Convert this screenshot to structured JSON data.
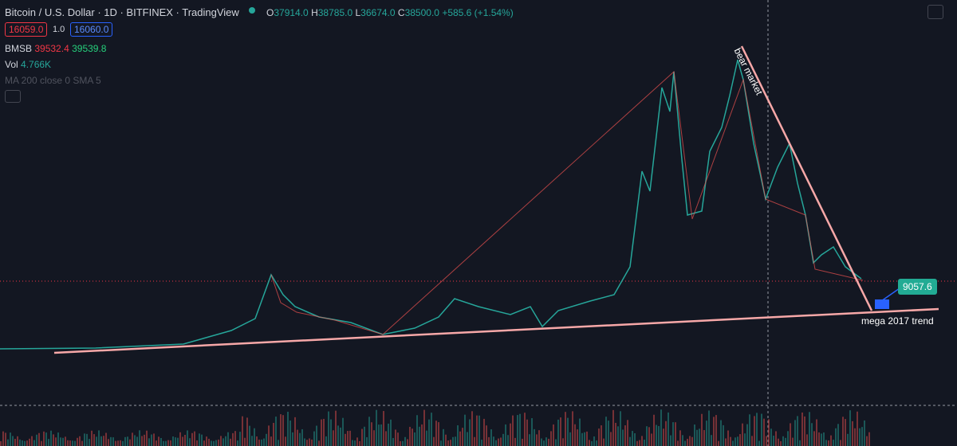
{
  "header": {
    "title": "Bitcoin / U.S. Dollar · 1D · BITFINEX · TradingView",
    "ohlc": [
      {
        "label": "O",
        "value": "37914.0"
      },
      {
        "label": "H",
        "value": "38785.0"
      },
      {
        "label": "L",
        "value": "36674.0"
      },
      {
        "label": "C",
        "value": "38500.0"
      }
    ],
    "change": "+585.6 (+1.54%)"
  },
  "order": {
    "sell": "16059.0",
    "qty": "1.0",
    "buy": "16060.0"
  },
  "indicators": {
    "bmsb": {
      "name": "BMSB",
      "low": "39532.4",
      "high": "39539.8"
    },
    "vol": {
      "name": "Vol",
      "value": "4.766K"
    },
    "ma": {
      "name": "MA 200 close 0 SMA 5"
    }
  },
  "annotations": {
    "bear": "bear market",
    "trend": "mega 2017 trend",
    "price_label": "9057.6"
  }
}
